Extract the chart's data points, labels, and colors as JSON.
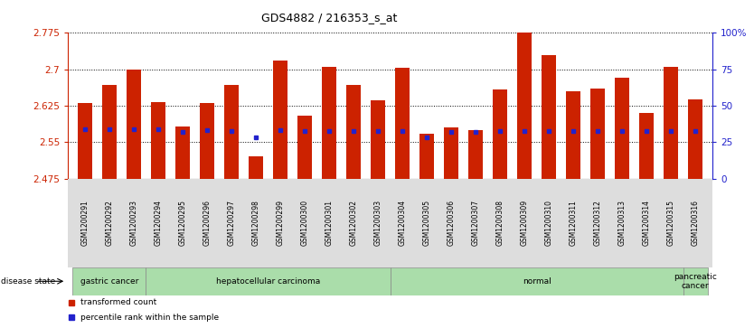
{
  "title": "GDS4882 / 216353_s_at",
  "samples": [
    "GSM1200291",
    "GSM1200292",
    "GSM1200293",
    "GSM1200294",
    "GSM1200295",
    "GSM1200296",
    "GSM1200297",
    "GSM1200298",
    "GSM1200299",
    "GSM1200300",
    "GSM1200301",
    "GSM1200302",
    "GSM1200303",
    "GSM1200304",
    "GSM1200305",
    "GSM1200306",
    "GSM1200307",
    "GSM1200308",
    "GSM1200309",
    "GSM1200310",
    "GSM1200311",
    "GSM1200312",
    "GSM1200313",
    "GSM1200314",
    "GSM1200315",
    "GSM1200316"
  ],
  "transformed_count": [
    2.63,
    2.668,
    2.7,
    2.633,
    2.582,
    2.63,
    2.668,
    2.522,
    2.718,
    2.605,
    2.705,
    2.668,
    2.637,
    2.703,
    2.567,
    2.58,
    2.575,
    2.658,
    2.775,
    2.73,
    2.655,
    2.66,
    2.683,
    2.61,
    2.705,
    2.638
  ],
  "percentile_rank": [
    2.577,
    2.577,
    2.577,
    2.577,
    2.572,
    2.575,
    2.574,
    2.56,
    2.575,
    2.574,
    2.574,
    2.574,
    2.574,
    2.574,
    2.56,
    2.572,
    2.571,
    2.573,
    2.574,
    2.574,
    2.573,
    2.573,
    2.574,
    2.573,
    2.574,
    2.574
  ],
  "ymin": 2.475,
  "ymax": 2.775,
  "yticks": [
    2.475,
    2.55,
    2.625,
    2.7,
    2.775
  ],
  "ytick_labels": [
    "2.475",
    "2.55",
    "2.625",
    "2.7",
    "2.775"
  ],
  "right_yticks": [
    0,
    25,
    50,
    75,
    100
  ],
  "right_ytick_labels": [
    "0",
    "25",
    "50",
    "75",
    "100%"
  ],
  "bar_color": "#cc2200",
  "percentile_color": "#2222cc",
  "disease_groups": [
    {
      "label": "gastric cancer",
      "start": 0,
      "end": 3
    },
    {
      "label": "hepatocellular carcinoma",
      "start": 3,
      "end": 13
    },
    {
      "label": "normal",
      "start": 13,
      "end": 25
    },
    {
      "label": "pancreatic\ncancer",
      "start": 25,
      "end": 26
    }
  ],
  "disease_bg_color": "#aaddaa",
  "bar_color_hex": "#cc2200",
  "percentile_color_hex": "#2222cc",
  "background_color": "#ffffff",
  "bar_width": 0.6,
  "legend_labels": [
    "transformed count",
    "percentile rank within the sample"
  ]
}
